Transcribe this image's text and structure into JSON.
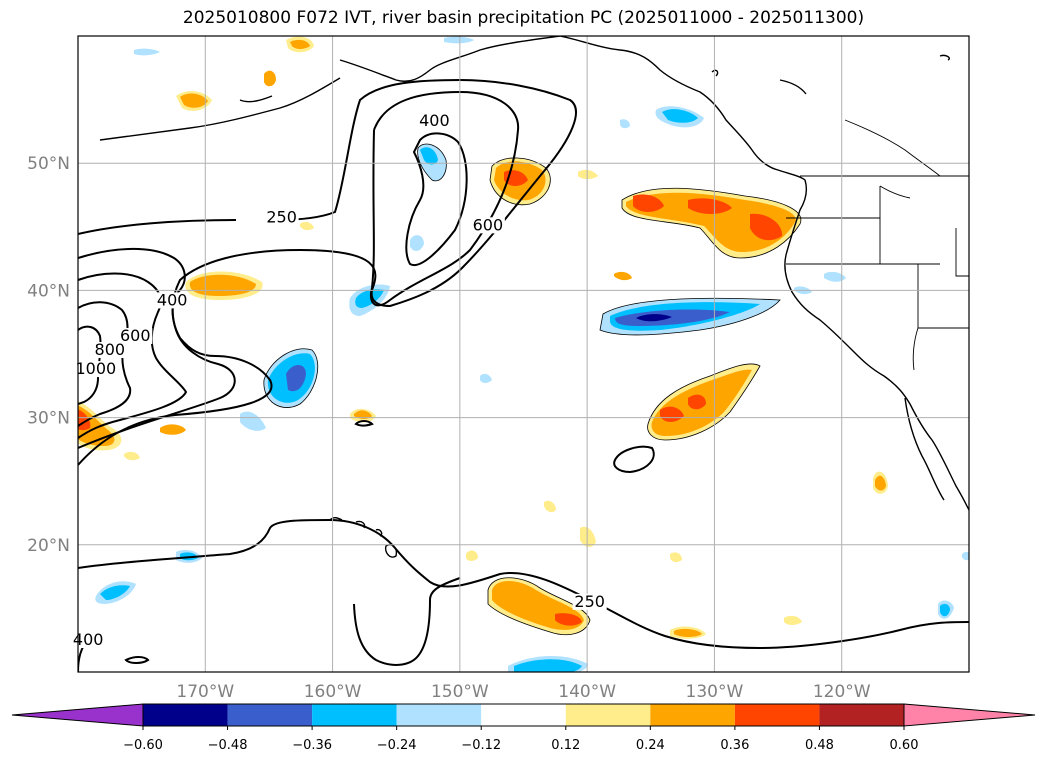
{
  "title": "2025010800 F072 IVT, river basin precipitation PC (2025011000 - 2025011300)",
  "map": {
    "projection": "PlateCarree",
    "extent": {
      "lon": [
        -180,
        -110
      ],
      "lat": [
        10,
        60
      ]
    },
    "lon_ticks": [
      {
        "lon": -170,
        "label": "170°W"
      },
      {
        "lon": -160,
        "label": "160°W"
      },
      {
        "lon": -150,
        "label": "150°W"
      },
      {
        "lon": -140,
        "label": "140°W"
      },
      {
        "lon": -130,
        "label": "130°W"
      },
      {
        "lon": -120,
        "label": "120°W"
      }
    ],
    "lat_ticks": [
      {
        "lat": 50,
        "label": "50°N"
      },
      {
        "lat": 40,
        "label": "40°N"
      },
      {
        "lat": 30,
        "label": "30°N"
      },
      {
        "lat": 20,
        "label": "20°N"
      }
    ],
    "gridlines": true,
    "contour_labels": [
      {
        "text": "250",
        "lon": -164.0,
        "lat": 45.4
      },
      {
        "text": "400",
        "lon": -152.0,
        "lat": 53.0
      },
      {
        "text": "600",
        "lon": -147.8,
        "lat": 44.8
      },
      {
        "text": "400",
        "lon": -172.6,
        "lat": 38.9
      },
      {
        "text": "600",
        "lon": -175.5,
        "lat": 36.1
      },
      {
        "text": "800",
        "lon": -177.5,
        "lat": 35.0
      },
      {
        "text": "1000",
        "lon": -178.6,
        "lat": 33.5
      },
      {
        "text": "250",
        "lon": -139.8,
        "lat": 15.2
      },
      {
        "text": "400",
        "lon": -179.2,
        "lat": 12.2
      }
    ]
  },
  "colorbar": {
    "ticks": [
      "−0.60",
      "−0.48",
      "−0.36",
      "−0.24",
      "−0.12",
      "0.12",
      "0.24",
      "0.36",
      "0.48",
      "0.60"
    ],
    "colors": [
      "#9932cc",
      "#00008b",
      "#3a5fcd",
      "#00bfff",
      "#b0e2ff",
      "#ffffff",
      "#ffec8b",
      "#ffa500",
      "#ff4500",
      "#b22222",
      "#ff83a8"
    ]
  },
  "palette": {
    "pos1": "#ffec8b",
    "pos2": "#ffa500",
    "pos3": "#ff4500",
    "neg1": "#b0e2ff",
    "neg2": "#00bfff",
    "neg3": "#3a5fcd",
    "neg4": "#00008b"
  }
}
